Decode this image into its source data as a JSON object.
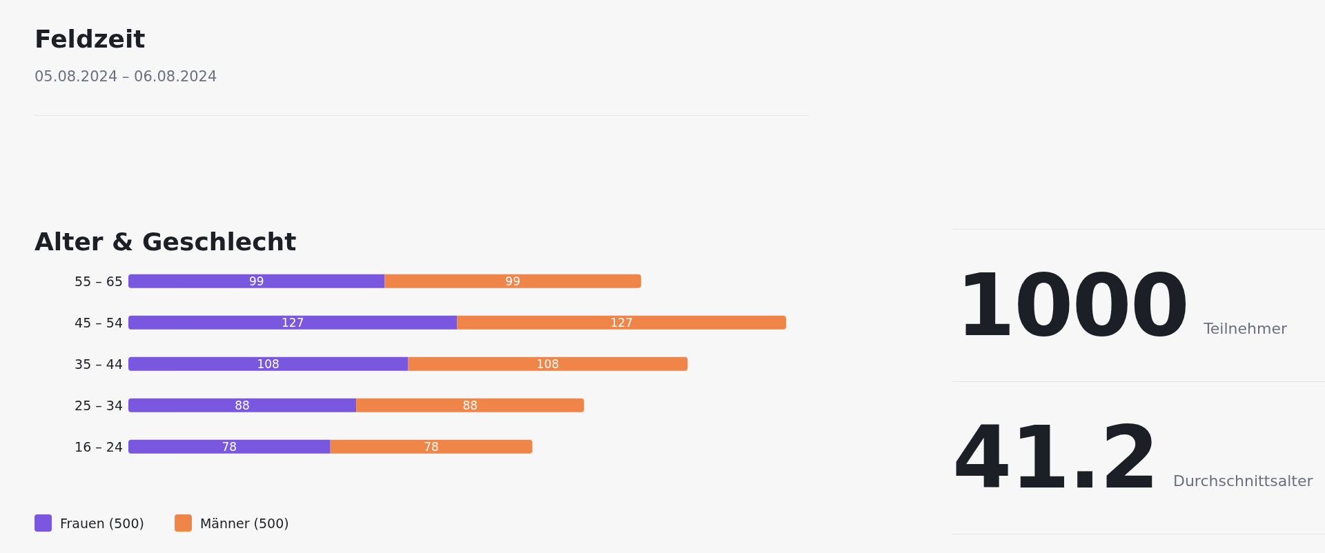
{
  "chart_data": [
    {
      "type": "other",
      "title": "Feldzeit",
      "subtitle": "05.08.2024 – 06.08.2024"
    },
    {
      "type": "bar",
      "title": "Alter & Geschlecht",
      "orientation": "horizontal",
      "stacked": true,
      "data_labels": true,
      "legend": "bottom",
      "categories": [
        "55 – 65",
        "45 – 54",
        "35 – 44",
        "25 – 34",
        "16 – 24"
      ],
      "series": [
        {
          "name": "Frauen (500)",
          "color": "#7957de",
          "values": [
            99,
            127,
            108,
            88,
            78
          ]
        },
        {
          "name": "Männer (500)",
          "color": "#f0854a",
          "values": [
            99,
            127,
            108,
            88,
            78
          ]
        }
      ]
    },
    {
      "type": "other",
      "annotations": [
        "1000",
        "Teilnehmer",
        "41.2",
        "Durchschnittsalter"
      ]
    }
  ]
}
